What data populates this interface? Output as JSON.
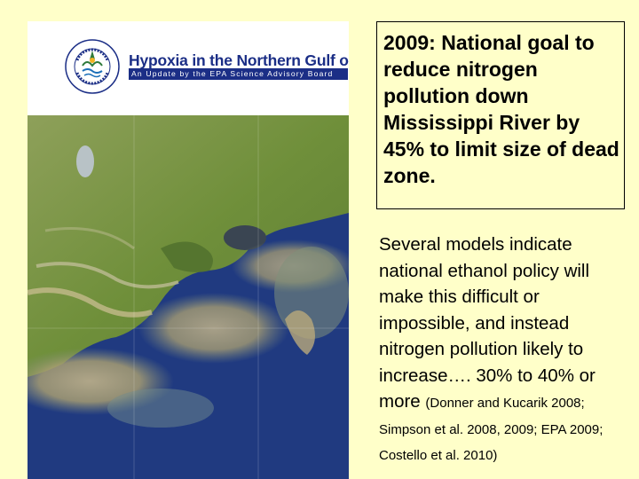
{
  "report_cover": {
    "title": "Hypoxia in the Northern Gulf of Mexico",
    "subtitle": "An Update by the EPA Science Advisory Board"
  },
  "goal_box": {
    "text": "2009:  National goal to reduce nitrogen pollution down Mississippi River by 45% to limit size of dead zone."
  },
  "models_paragraph": {
    "text": "Several models indicate national ethanol policy will make this difficult or impossible, and instead nitrogen pollution likely to increase….  30% to 40% or more ",
    "citation": "(Donner and Kucarik 2008;  Simpson et al. 2008, 2009; EPA 2009;  Costello et al. 2010)"
  },
  "colors": {
    "slide_background": "#ffffc9",
    "title_blue": "#1b2e86",
    "gulf_water": "#203a80",
    "sediment_plume": "#b9a97a",
    "marsh_green": "#6f8f3a"
  },
  "icons": {
    "seal": "epa-seal-icon"
  }
}
